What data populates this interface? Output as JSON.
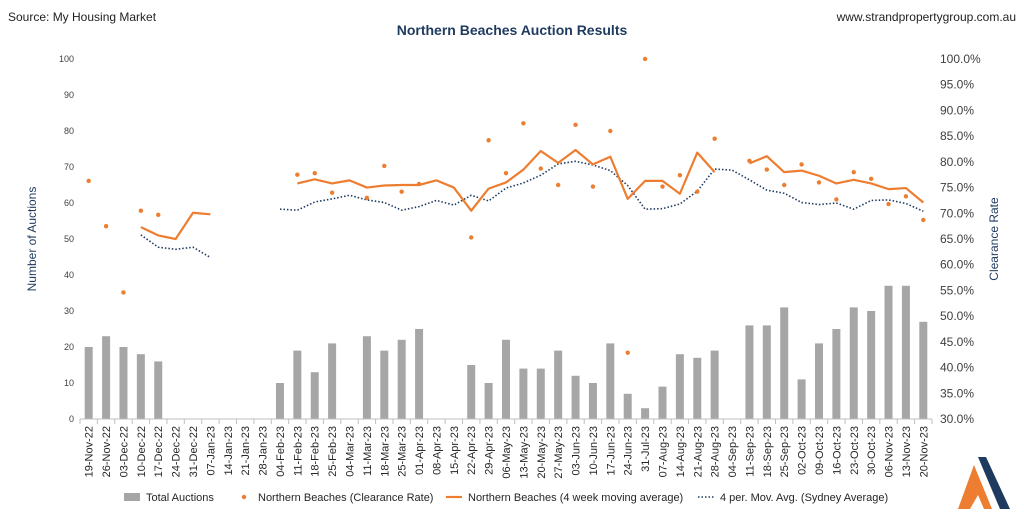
{
  "header": {
    "source": "Source: My Housing Market",
    "website": "www.strandpropertygroup.com.au"
  },
  "colors": {
    "bars": "#a6a6a6",
    "clearance": "#ed7d31",
    "moving_avg": "#ed7d31",
    "sydney_avg": "#1f3a5f",
    "logo_navy": "#1f3a5f",
    "logo_orange": "#ed7d31"
  },
  "chart_data": {
    "type": "bar",
    "title": "Northern Beaches Auction Results",
    "ylabel": "Number of Auctions",
    "y2label": "Clearance Rate",
    "ylim": [
      0,
      100
    ],
    "y_ticks": [
      0,
      10,
      20,
      30,
      40,
      50,
      60,
      70,
      80,
      90,
      100
    ],
    "y2lim": [
      30,
      100
    ],
    "y2_ticks": [
      "30.0%",
      "35.0%",
      "40.0%",
      "45.0%",
      "50.0%",
      "55.0%",
      "60.0%",
      "65.0%",
      "70.0%",
      "75.0%",
      "80.0%",
      "85.0%",
      "90.0%",
      "95.0%",
      "100.0%"
    ],
    "legend_position": "bottom",
    "categories": [
      "19-Nov-22",
      "26-Nov-22",
      "03-Dec-22",
      "10-Dec-22",
      "17-Dec-22",
      "24-Dec-22",
      "31-Dec-22",
      "07-Jan-23",
      "14-Jan-23",
      "21-Jan-23",
      "28-Jan-23",
      "04-Feb-23",
      "11-Feb-23",
      "18-Feb-23",
      "25-Feb-23",
      "04-Mar-23",
      "11-Mar-23",
      "18-Mar-23",
      "25-Mar-23",
      "01-Apr-23",
      "08-Apr-23",
      "15-Apr-23",
      "22-Apr-23",
      "29-Apr-23",
      "06-May-23",
      "13-May-23",
      "20-May-23",
      "27-May-23",
      "03-Jun-23",
      "10-Jun-23",
      "17-Jun-23",
      "24-Jun-23",
      "31-Jul-23",
      "07-Aug-23",
      "14-Aug-23",
      "21-Aug-23",
      "28-Aug-23",
      "04-Sep-23",
      "11-Sep-23",
      "18-Sep-23",
      "25-Sep-23",
      "02-Oct-23",
      "09-Oct-23",
      "16-Oct-23",
      "23-Oct-23",
      "30-Oct-23",
      "06-Nov-23",
      "13-Nov-23",
      "20-Nov-23"
    ],
    "series": [
      {
        "name": "Total Auctions",
        "kind": "bar",
        "axis": "left",
        "values": [
          20,
          23,
          20,
          18,
          16,
          0,
          0,
          0,
          0,
          0,
          0,
          10,
          19,
          13,
          21,
          0,
          23,
          19,
          22,
          25,
          0,
          0,
          15,
          10,
          22,
          14,
          14,
          19,
          12,
          10,
          21,
          7,
          3,
          9,
          18,
          17,
          19,
          0,
          26,
          26,
          31,
          11,
          21,
          25,
          31,
          30,
          37,
          37,
          27
        ]
      },
      {
        "name": "Northern Beaches (Clearance Rate)",
        "kind": "scatter",
        "axis": "right",
        "values": [
          76.3,
          67.5,
          54.6,
          70.5,
          69.7,
          null,
          null,
          null,
          null,
          null,
          null,
          null,
          77.5,
          77.8,
          74.0,
          null,
          73.0,
          79.2,
          74.2,
          75.7,
          null,
          null,
          65.3,
          84.2,
          77.8,
          87.5,
          78.7,
          75.5,
          87.2,
          75.2,
          86.0,
          42.9,
          100.0,
          75.2,
          77.4,
          74.2,
          84.5,
          null,
          80.2,
          78.5,
          75.5,
          79.5,
          76.0,
          72.7,
          78.0,
          76.7,
          71.8,
          73.3,
          68.7
        ]
      },
      {
        "name": "Northern Beaches (4 week moving average)",
        "kind": "line",
        "axis": "right",
        "values": [
          null,
          null,
          null,
          67.3,
          65.7,
          65.0,
          70.1,
          69.8,
          null,
          null,
          null,
          null,
          75.8,
          76.6,
          75.8,
          76.4,
          75.0,
          75.4,
          75.5,
          75.5,
          76.4,
          75.0,
          70.5,
          74.8,
          76.0,
          78.5,
          82.1,
          79.8,
          82.3,
          79.5,
          81.0,
          72.8,
          76.3,
          76.3,
          73.8,
          81.8,
          78.0,
          null,
          79.7,
          81.1,
          78.0,
          78.3,
          77.3,
          75.8,
          76.5,
          75.8,
          74.7,
          74.9,
          72.1
        ]
      },
      {
        "name": "4 per. Mov. Avg. (Sydney Average)",
        "kind": "line",
        "axis": "right",
        "values": [
          null,
          null,
          null,
          65.8,
          63.4,
          63.0,
          63.4,
          61.4,
          null,
          null,
          null,
          70.8,
          70.6,
          72.2,
          72.8,
          73.5,
          72.6,
          72.1,
          70.6,
          71.3,
          72.5,
          71.6,
          73.5,
          72.4,
          74.9,
          75.9,
          77.4,
          79.6,
          80.1,
          79.4,
          78.3,
          75.4,
          70.8,
          70.9,
          71.8,
          74.3,
          78.6,
          78.4,
          76.5,
          74.5,
          73.9,
          72.1,
          71.7,
          72.0,
          70.8,
          72.5,
          72.6,
          71.9,
          70.4
        ]
      }
    ]
  }
}
